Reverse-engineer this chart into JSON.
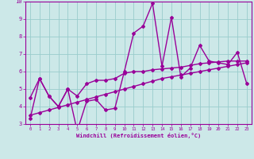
{
  "xlabel": "Windchill (Refroidissement éolien,°C)",
  "x_values": [
    0,
    1,
    2,
    3,
    4,
    5,
    6,
    7,
    8,
    9,
    10,
    11,
    12,
    13,
    14,
    15,
    16,
    17,
    18,
    19,
    20,
    21,
    22,
    23
  ],
  "line1": [
    3.3,
    5.6,
    4.6,
    4.0,
    5.0,
    2.6,
    4.3,
    4.4,
    3.8,
    3.9,
    6.0,
    8.2,
    8.6,
    9.9,
    6.3,
    9.1,
    5.7,
    6.2,
    7.5,
    6.6,
    6.5,
    6.4,
    7.1,
    5.3
  ],
  "line2": [
    4.5,
    5.6,
    4.6,
    4.0,
    5.0,
    4.6,
    5.3,
    5.5,
    5.5,
    5.6,
    5.9,
    6.0,
    6.0,
    6.1,
    6.15,
    6.2,
    6.25,
    6.35,
    6.45,
    6.5,
    6.55,
    6.6,
    6.6,
    6.6
  ],
  "line3": [
    3.5,
    3.65,
    3.8,
    3.95,
    4.1,
    4.25,
    4.4,
    4.55,
    4.7,
    4.85,
    5.0,
    5.15,
    5.3,
    5.45,
    5.6,
    5.7,
    5.8,
    5.9,
    6.0,
    6.1,
    6.2,
    6.3,
    6.4,
    6.5
  ],
  "ylim": [
    3,
    10
  ],
  "xlim_min": -0.5,
  "xlim_max": 23.5,
  "bg_color": "#cce8e8",
  "line_color": "#990099",
  "grid_color": "#99cccc",
  "tick_label_color": "#990099",
  "xlabel_color": "#990099",
  "marker": "D",
  "marker_size": 2,
  "linewidth": 1.0,
  "yticks": [
    3,
    4,
    5,
    6,
    7,
    8,
    9,
    10
  ]
}
